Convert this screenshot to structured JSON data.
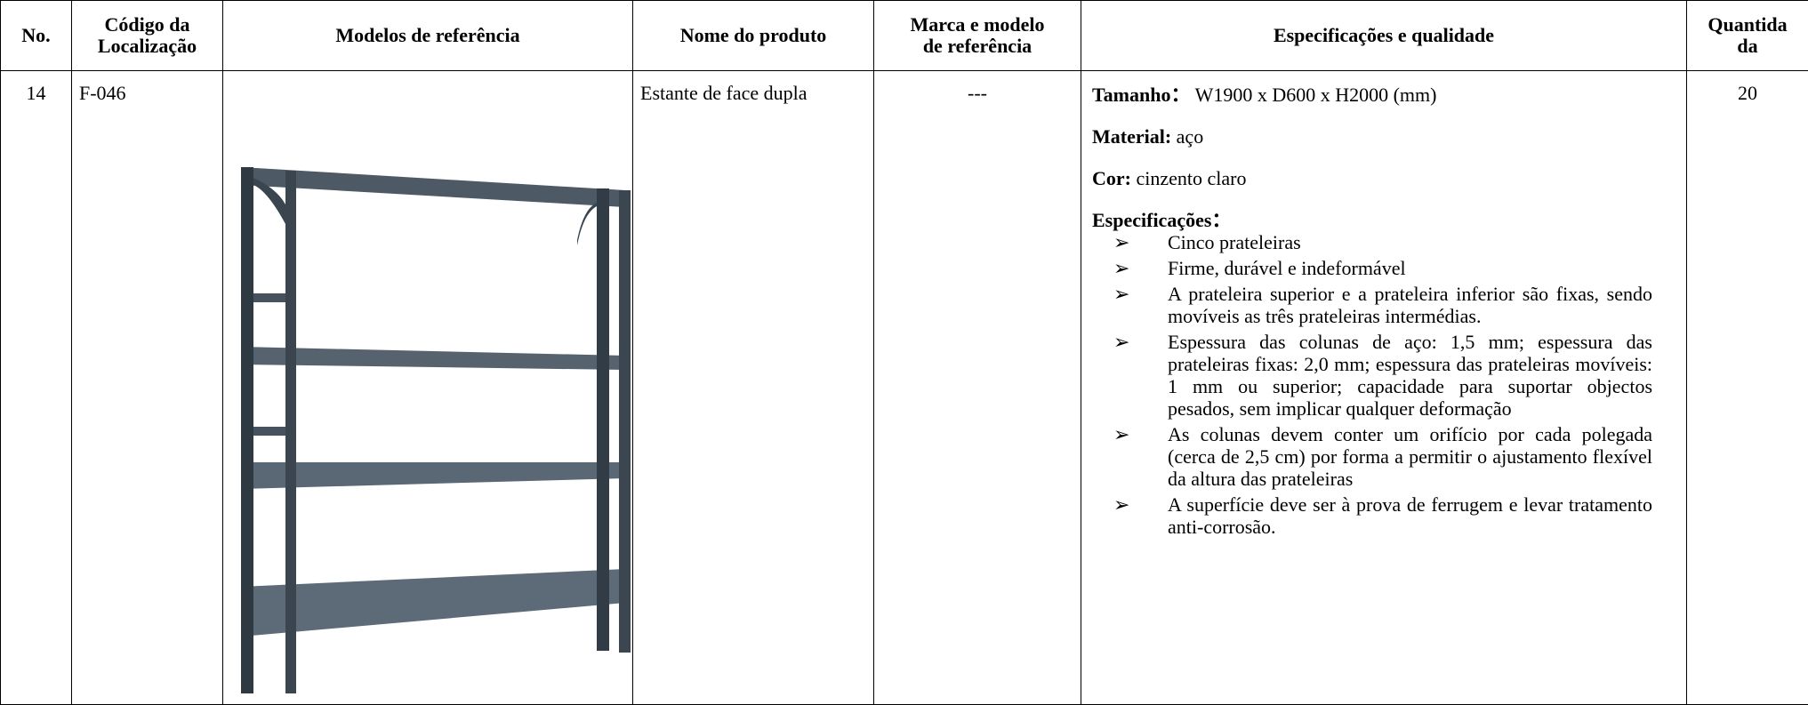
{
  "header": {
    "columns": [
      [
        "No."
      ],
      [
        "Código da",
        "Localização"
      ],
      [
        "Modelos de referência"
      ],
      [
        "Nome do produto"
      ],
      [
        "Marca e modelo",
        "de referência"
      ],
      [
        "Especificações e qualidade"
      ],
      [
        "Quantida",
        "da"
      ]
    ]
  },
  "row": {
    "no": "14",
    "code": "F-046",
    "name": "Estante de face dupla",
    "brand": "---",
    "quantity": "20",
    "specs": {
      "size_label": "Tamanho：",
      "size": "W1900 x D600 x H2000 (mm)",
      "material_label": "Material:",
      "material": "aço",
      "color_label": "Cor:",
      "color": "cinzento claro",
      "spec_label": "Especificações：",
      "items": [
        "Cinco prateleiras",
        "Firme, durável e indeformável",
        "A prateleira superior e a prateleira inferior são fixas, sendo movíveis as três prateleiras intermédias.",
        "Espessura das colunas de aço: 1,5 mm; espessura das prateleiras fixas: 2,0 mm; espessura das prateleiras movíveis: 1 mm ou superior; capacidade para suportar objectos pesados, sem implicar qualquer deformação",
        "As colunas devem conter um orifício por cada polegada (cerca de 2,5 cm) por forma a permitir o ajustamento flexível da altura das prateleiras",
        "A superfície deve ser à prova de ferrugem e levar tratamento anti-corrosão."
      ]
    }
  }
}
